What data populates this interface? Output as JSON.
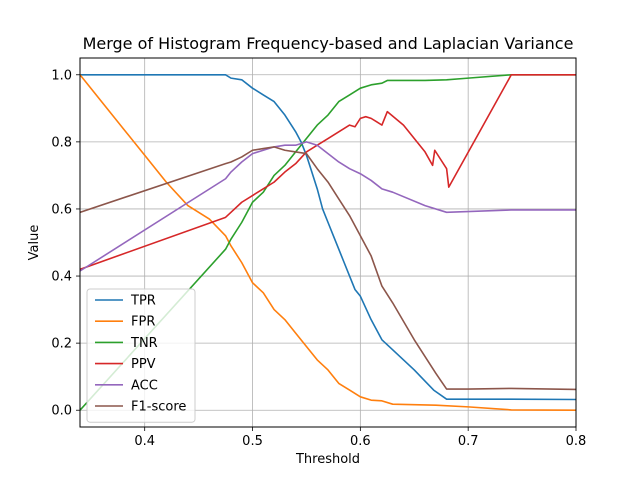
{
  "chart_data": {
    "type": "line",
    "title": "Merge of Histogram Frequency-based and Laplacian Variance",
    "xlabel": "Threshold",
    "ylabel": "Value",
    "xlim": [
      0.34,
      0.8
    ],
    "ylim": [
      -0.05,
      1.05
    ],
    "xticks": [
      0.4,
      0.5,
      0.6,
      0.7,
      0.8
    ],
    "xtick_labels": [
      "0.4",
      "0.5",
      "0.6",
      "0.7",
      "0.8"
    ],
    "yticks": [
      0.0,
      0.2,
      0.4,
      0.6,
      0.8,
      1.0
    ],
    "ytick_labels": [
      "0.0",
      "0.2",
      "0.4",
      "0.6",
      "0.8",
      "1.0"
    ],
    "grid": true,
    "legend_position": "lower-left",
    "series": [
      {
        "name": "TPR",
        "color": "#1f77b4",
        "points": [
          [
            0.34,
            1.0
          ],
          [
            0.475,
            1.0
          ],
          [
            0.48,
            0.99
          ],
          [
            0.49,
            0.985
          ],
          [
            0.5,
            0.96
          ],
          [
            0.51,
            0.94
          ],
          [
            0.52,
            0.92
          ],
          [
            0.53,
            0.88
          ],
          [
            0.54,
            0.83
          ],
          [
            0.545,
            0.8
          ],
          [
            0.55,
            0.76
          ],
          [
            0.555,
            0.71
          ],
          [
            0.56,
            0.66
          ],
          [
            0.565,
            0.6
          ],
          [
            0.57,
            0.56
          ],
          [
            0.575,
            0.52
          ],
          [
            0.58,
            0.48
          ],
          [
            0.585,
            0.44
          ],
          [
            0.59,
            0.4
          ],
          [
            0.595,
            0.36
          ],
          [
            0.6,
            0.34
          ],
          [
            0.61,
            0.27
          ],
          [
            0.62,
            0.21
          ],
          [
            0.63,
            0.18
          ],
          [
            0.65,
            0.12
          ],
          [
            0.668,
            0.06
          ],
          [
            0.68,
            0.033
          ],
          [
            0.7,
            0.033
          ],
          [
            0.74,
            0.033
          ],
          [
            0.8,
            0.032
          ]
        ]
      },
      {
        "name": "FPR",
        "color": "#ff7f0e",
        "points": [
          [
            0.34,
            1.0
          ],
          [
            0.36,
            0.92
          ],
          [
            0.38,
            0.84
          ],
          [
            0.4,
            0.76
          ],
          [
            0.42,
            0.68
          ],
          [
            0.44,
            0.61
          ],
          [
            0.46,
            0.57
          ],
          [
            0.475,
            0.52
          ],
          [
            0.48,
            0.49
          ],
          [
            0.49,
            0.44
          ],
          [
            0.5,
            0.38
          ],
          [
            0.51,
            0.35
          ],
          [
            0.52,
            0.3
          ],
          [
            0.53,
            0.27
          ],
          [
            0.54,
            0.23
          ],
          [
            0.55,
            0.19
          ],
          [
            0.56,
            0.15
          ],
          [
            0.57,
            0.12
          ],
          [
            0.58,
            0.08
          ],
          [
            0.59,
            0.06
          ],
          [
            0.6,
            0.04
          ],
          [
            0.61,
            0.03
          ],
          [
            0.62,
            0.028
          ],
          [
            0.63,
            0.018
          ],
          [
            0.67,
            0.015
          ],
          [
            0.7,
            0.01
          ],
          [
            0.74,
            0.001
          ],
          [
            0.8,
            0.0
          ]
        ]
      },
      {
        "name": "TNR",
        "color": "#2ca02c",
        "points": [
          [
            0.34,
            0.0
          ],
          [
            0.475,
            0.48
          ],
          [
            0.48,
            0.51
          ],
          [
            0.49,
            0.56
          ],
          [
            0.5,
            0.62
          ],
          [
            0.51,
            0.65
          ],
          [
            0.52,
            0.7
          ],
          [
            0.53,
            0.73
          ],
          [
            0.54,
            0.77
          ],
          [
            0.55,
            0.81
          ],
          [
            0.56,
            0.85
          ],
          [
            0.57,
            0.88
          ],
          [
            0.58,
            0.92
          ],
          [
            0.59,
            0.94
          ],
          [
            0.6,
            0.96
          ],
          [
            0.61,
            0.97
          ],
          [
            0.62,
            0.975
          ],
          [
            0.625,
            0.983
          ],
          [
            0.66,
            0.983
          ],
          [
            0.68,
            0.985
          ],
          [
            0.7,
            0.99
          ],
          [
            0.74,
            1.0
          ],
          [
            0.8,
            1.0
          ]
        ]
      },
      {
        "name": "PPV",
        "color": "#d62728",
        "points": [
          [
            0.34,
            0.42
          ],
          [
            0.475,
            0.575
          ],
          [
            0.48,
            0.59
          ],
          [
            0.49,
            0.62
          ],
          [
            0.5,
            0.64
          ],
          [
            0.51,
            0.66
          ],
          [
            0.52,
            0.68
          ],
          [
            0.53,
            0.71
          ],
          [
            0.54,
            0.735
          ],
          [
            0.55,
            0.77
          ],
          [
            0.56,
            0.79
          ],
          [
            0.57,
            0.81
          ],
          [
            0.58,
            0.83
          ],
          [
            0.59,
            0.85
          ],
          [
            0.595,
            0.845
          ],
          [
            0.6,
            0.87
          ],
          [
            0.605,
            0.875
          ],
          [
            0.61,
            0.87
          ],
          [
            0.615,
            0.86
          ],
          [
            0.62,
            0.85
          ],
          [
            0.625,
            0.89
          ],
          [
            0.64,
            0.85
          ],
          [
            0.65,
            0.81
          ],
          [
            0.66,
            0.77
          ],
          [
            0.667,
            0.73
          ],
          [
            0.669,
            0.775
          ],
          [
            0.68,
            0.72
          ],
          [
            0.682,
            0.665
          ],
          [
            0.74,
            1.0
          ],
          [
            0.8,
            1.0
          ]
        ]
      },
      {
        "name": "ACC",
        "color": "#9467bd",
        "points": [
          [
            0.34,
            0.415
          ],
          [
            0.475,
            0.69
          ],
          [
            0.48,
            0.71
          ],
          [
            0.49,
            0.74
          ],
          [
            0.5,
            0.765
          ],
          [
            0.51,
            0.775
          ],
          [
            0.52,
            0.785
          ],
          [
            0.53,
            0.79
          ],
          [
            0.54,
            0.79
          ],
          [
            0.55,
            0.8
          ],
          [
            0.56,
            0.79
          ],
          [
            0.57,
            0.765
          ],
          [
            0.58,
            0.74
          ],
          [
            0.59,
            0.72
          ],
          [
            0.6,
            0.705
          ],
          [
            0.61,
            0.685
          ],
          [
            0.62,
            0.66
          ],
          [
            0.63,
            0.65
          ],
          [
            0.66,
            0.61
          ],
          [
            0.68,
            0.59
          ],
          [
            0.74,
            0.597
          ],
          [
            0.8,
            0.597
          ]
        ]
      },
      {
        "name": "F1-score",
        "color": "#8c564b",
        "points": [
          [
            0.34,
            0.59
          ],
          [
            0.475,
            0.735
          ],
          [
            0.48,
            0.74
          ],
          [
            0.49,
            0.755
          ],
          [
            0.5,
            0.775
          ],
          [
            0.51,
            0.78
          ],
          [
            0.52,
            0.785
          ],
          [
            0.53,
            0.775
          ],
          [
            0.54,
            0.77
          ],
          [
            0.55,
            0.765
          ],
          [
            0.56,
            0.72
          ],
          [
            0.57,
            0.68
          ],
          [
            0.58,
            0.63
          ],
          [
            0.59,
            0.58
          ],
          [
            0.6,
            0.52
          ],
          [
            0.61,
            0.46
          ],
          [
            0.62,
            0.37
          ],
          [
            0.63,
            0.32
          ],
          [
            0.65,
            0.21
          ],
          [
            0.67,
            0.11
          ],
          [
            0.68,
            0.063
          ],
          [
            0.7,
            0.063
          ],
          [
            0.74,
            0.065
          ],
          [
            0.8,
            0.062
          ]
        ]
      }
    ]
  }
}
